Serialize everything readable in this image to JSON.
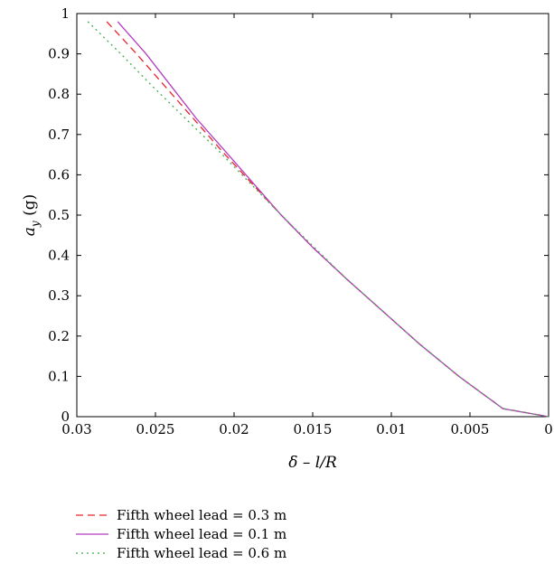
{
  "chart_data": {
    "type": "line",
    "title": "",
    "xlabel": "δ – l/R",
    "ylabel": "a_y (g)",
    "ylabel_main": "a",
    "ylabel_sub": "y",
    "ylabel_unit": " (g)",
    "xlim": [
      0.03,
      0
    ],
    "ylim": [
      0,
      1
    ],
    "x_reversed": true,
    "xticks": [
      0.03,
      0.025,
      0.02,
      0.015,
      0.01,
      0.005,
      0
    ],
    "xtick_labels": [
      "0.03",
      "0.025",
      "0.02",
      "0.015",
      "0.01",
      "0.005",
      "0"
    ],
    "yticks": [
      0,
      0.1,
      0.2,
      0.3,
      0.4,
      0.5,
      0.6,
      0.7,
      0.8,
      0.9,
      1
    ],
    "ytick_labels": [
      "0",
      "0.1",
      "0.2",
      "0.3",
      "0.4",
      "0.5",
      "0.6",
      "0.7",
      "0.8",
      "0.9",
      "1"
    ],
    "grid": false,
    "legend_position": "below",
    "series": [
      {
        "name": "Fifth wheel lead = 0.3 m",
        "color": "#e8242a",
        "dash": "8,5",
        "points": [
          [
            0.0281,
            0.98
          ],
          [
            0.0262,
            0.9
          ],
          [
            0.0244,
            0.82
          ],
          [
            0.0226,
            0.74
          ],
          [
            0.0208,
            0.66
          ],
          [
            0.0189,
            0.58
          ],
          [
            0.017,
            0.5
          ],
          [
            0.015,
            0.42
          ],
          [
            0.0128,
            0.34
          ],
          [
            0.0105,
            0.26
          ],
          [
            0.0082,
            0.18
          ],
          [
            0.0057,
            0.1
          ],
          [
            0.0029,
            0.02
          ],
          [
            0.0,
            0.0
          ]
        ]
      },
      {
        "name": "Fifth wheel lead = 0.1 m",
        "color": "#b53cc0",
        "dash": "",
        "points": [
          [
            0.0274,
            0.98
          ],
          [
            0.0256,
            0.9
          ],
          [
            0.024,
            0.82
          ],
          [
            0.0224,
            0.74
          ],
          [
            0.0206,
            0.66
          ],
          [
            0.0188,
            0.58
          ],
          [
            0.017,
            0.5
          ],
          [
            0.015,
            0.42
          ],
          [
            0.0128,
            0.34
          ],
          [
            0.0105,
            0.26
          ],
          [
            0.0082,
            0.18
          ],
          [
            0.0057,
            0.1
          ],
          [
            0.0029,
            0.02
          ],
          [
            0.0,
            0.0
          ]
        ]
      },
      {
        "name": "Fifth wheel lead = 0.6 m",
        "color": "#3cb04a",
        "dash": "2,4",
        "points": [
          [
            0.0293,
            0.98
          ],
          [
            0.0272,
            0.9
          ],
          [
            0.0252,
            0.82
          ],
          [
            0.0231,
            0.74
          ],
          [
            0.021,
            0.66
          ],
          [
            0.019,
            0.58
          ],
          [
            0.017,
            0.5
          ],
          [
            0.0149,
            0.42
          ],
          [
            0.0128,
            0.34
          ],
          [
            0.0105,
            0.26
          ],
          [
            0.0082,
            0.18
          ],
          [
            0.0057,
            0.1
          ],
          [
            0.0029,
            0.02
          ],
          [
            0.0,
            0.0
          ]
        ]
      }
    ]
  }
}
